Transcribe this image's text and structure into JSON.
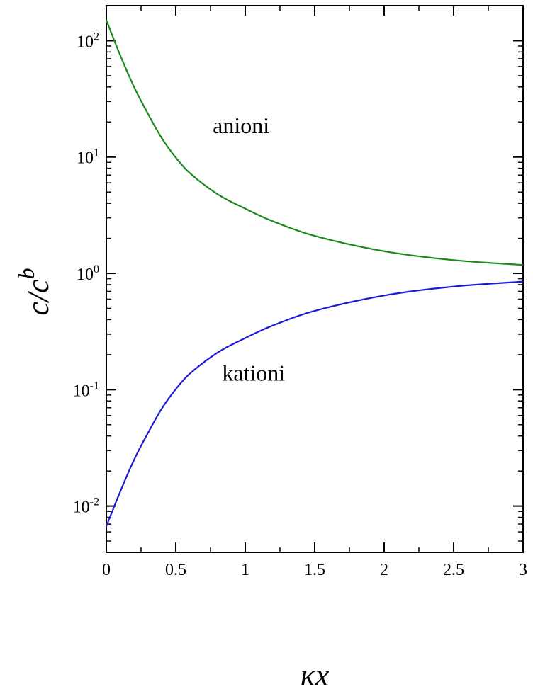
{
  "chart_data": {
    "type": "line",
    "xlabel": "κx",
    "ylabel": {
      "base": "c/c",
      "sup": "b"
    },
    "xlim": [
      0,
      3
    ],
    "ylim": [
      0.004,
      200
    ],
    "yscale": "log",
    "grid": false,
    "x_ticks": [
      "0",
      "0.5",
      "1",
      "1.5",
      "2",
      "2.5",
      "3"
    ],
    "y_ticks": [
      {
        "base": "10",
        "exp": "-2"
      },
      {
        "base": "10",
        "exp": "-1"
      },
      {
        "base": "10",
        "exp": "0"
      },
      {
        "base": "10",
        "exp": "1"
      },
      {
        "base": "10",
        "exp": "2"
      }
    ],
    "series": [
      {
        "name": "anioni",
        "color": "#1a8a1a",
        "x": [
          0,
          0.1,
          0.2,
          0.3,
          0.4,
          0.5,
          0.6,
          0.8,
          1.0,
          1.2,
          1.5,
          2.0,
          2.5,
          3.0
        ],
        "y": [
          150,
          75,
          40,
          23.5,
          14.5,
          9.9,
          7.3,
          4.8,
          3.6,
          2.8,
          2.1,
          1.55,
          1.3,
          1.18
        ]
      },
      {
        "name": "kationi",
        "color": "#1a1ad8",
        "x": [
          0,
          0.1,
          0.2,
          0.3,
          0.4,
          0.5,
          0.6,
          0.8,
          1.0,
          1.2,
          1.5,
          2.0,
          2.5,
          3.0
        ],
        "y": [
          0.0067,
          0.0133,
          0.025,
          0.0425,
          0.069,
          0.101,
          0.137,
          0.208,
          0.278,
          0.357,
          0.476,
          0.645,
          0.77,
          0.85
        ]
      }
    ],
    "annotations": [
      {
        "text": "anioni",
        "x": 0.97,
        "y": 16
      },
      {
        "text": "kationi",
        "x": 1.06,
        "y": 0.12
      }
    ]
  }
}
